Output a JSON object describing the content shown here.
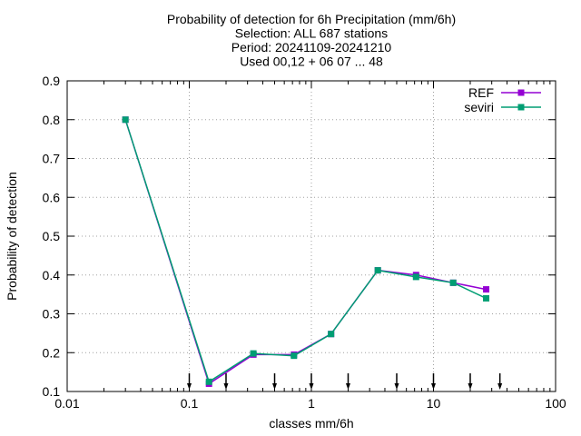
{
  "chart_data": {
    "type": "line",
    "title_lines": [
      "Probability of detection  for 6h Precipitation (mm/6h)",
      "Selection: ALL    687 stations",
      "Period: 20241109-20241210",
      "Used 00,12 + 06 07 ... 48"
    ],
    "xlabel": "classes mm/6h",
    "ylabel": "Probability of detection",
    "xscale": "log",
    "xlim": [
      0.01,
      100
    ],
    "ylim": [
      0.1,
      0.9
    ],
    "x_ticks": [
      0.01,
      0.1,
      1,
      10,
      100
    ],
    "x_tick_labels": [
      "0.01",
      "0.1",
      "1",
      "10",
      "100"
    ],
    "y_ticks": [
      0.1,
      0.2,
      0.3,
      0.4,
      0.5,
      0.6,
      0.7,
      0.8,
      0.9
    ],
    "y_tick_labels": [
      "0.1",
      "0.2",
      "0.3",
      "0.4",
      "0.5",
      "0.6",
      "0.7",
      "0.8",
      "0.9"
    ],
    "grid": true,
    "legend_position": "top-right",
    "class_threshold_arrows": [
      0.1,
      0.2,
      0.5,
      1,
      2,
      5,
      10,
      20,
      35
    ],
    "series": [
      {
        "name": "REF",
        "color": "#9400d3",
        "x": [
          0.03,
          0.145,
          0.335,
          0.72,
          1.45,
          3.5,
          7.2,
          14.5,
          27
        ],
        "y": [
          0.8,
          0.12,
          0.195,
          0.195,
          0.248,
          0.412,
          0.4,
          0.38,
          0.363
        ]
      },
      {
        "name": "seviri",
        "color": "#009e73",
        "x": [
          0.03,
          0.145,
          0.335,
          0.72,
          1.45,
          3.5,
          7.2,
          14.5,
          27
        ],
        "y": [
          0.8,
          0.125,
          0.198,
          0.192,
          0.248,
          0.412,
          0.395,
          0.38,
          0.34
        ]
      }
    ]
  }
}
